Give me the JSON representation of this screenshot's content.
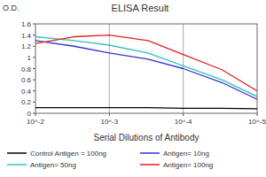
{
  "chart_data": {
    "type": "line",
    "title": "ELISA Result",
    "y_label": "O.D.",
    "x_label": "Serial Dilutions of Antibody",
    "log": "x",
    "grid": true,
    "legend": "bottom",
    "x": [
      0.01,
      0.003,
      0.001,
      0.0003,
      0.0001,
      3e-05,
      1e-05
    ],
    "xlim": [
      0.01,
      1e-05
    ],
    "xticks": [
      {
        "value": 0.01,
        "label": "10^-2"
      },
      {
        "value": 0.001,
        "label": "10^-3"
      },
      {
        "value": 0.0001,
        "label": "10^-4"
      },
      {
        "value": 1e-05,
        "label": "10^-5"
      }
    ],
    "ylim": [
      0,
      1.6
    ],
    "yticks": [
      0,
      0.2,
      0.4,
      0.6,
      0.8,
      1,
      1.2,
      1.4,
      1.6
    ],
    "series": [
      {
        "name": "Control Antigen = 100ng",
        "color": "#000000",
        "values": [
          0.1,
          0.1,
          0.1,
          0.1,
          0.09,
          0.09,
          0.08
        ]
      },
      {
        "name": "Antigen= 10ng",
        "color": "#3333cc",
        "values": [
          1.3,
          1.2,
          1.08,
          0.97,
          0.8,
          0.55,
          0.25
        ]
      },
      {
        "name": "Antigen= 50ng",
        "color": "#33c0c0",
        "values": [
          1.37,
          1.3,
          1.22,
          1.08,
          0.85,
          0.6,
          0.3
        ]
      },
      {
        "name": "Antigen= 100ng",
        "color": "#e02020",
        "values": [
          1.25,
          1.37,
          1.4,
          1.3,
          1.05,
          0.78,
          0.4
        ]
      }
    ]
  }
}
